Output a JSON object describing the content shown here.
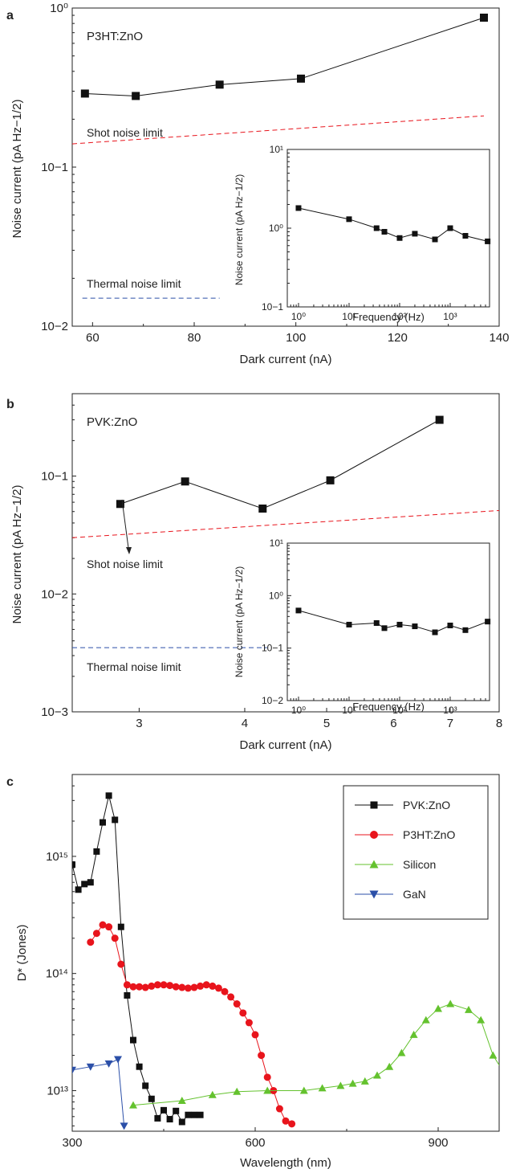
{
  "panels": [
    {
      "label": "a",
      "annotations": [
        "P3HT:ZnO",
        "Shot noise limit",
        "Thermal noise limit"
      ]
    },
    {
      "label": "b",
      "annotations": [
        "PVK:ZnO",
        "Shot noise limit",
        "Thermal noise limit"
      ]
    },
    {
      "label": "c",
      "annotations": []
    }
  ],
  "colors": {
    "black_series": "#111111",
    "red_series": "#e8141c",
    "green_series": "#64c22e",
    "blue_series": "#2b4fa8",
    "shot_noise_line": "#e8141c",
    "thermal_noise_line": "#2b4fa8"
  },
  "chart_data": [
    {
      "type": "line",
      "panel": "a",
      "xlabel": "Dark current (nA)",
      "ylabel": "Noise current (pA Hz−1/2)",
      "xscale": "linear",
      "yscale": "log",
      "xlim": [
        56,
        140
      ],
      "ylim": [
        0.01,
        1
      ],
      "xticks": [
        "60",
        "80",
        "100",
        "120",
        "140"
      ],
      "yticks": [
        "10−2",
        "10−1",
        "10⁰"
      ],
      "series": [
        {
          "x": [
            58.5,
            68.5,
            85,
            101,
            137
          ],
          "y": [
            0.29,
            0.28,
            0.33,
            0.36,
            0.87
          ]
        },
        {
          "x": [
            56,
            137
          ],
          "y": [
            0.14,
            0.21
          ]
        },
        {
          "x": [
            58,
            85
          ],
          "y": [
            0.015,
            0.015
          ]
        }
      ]
    },
    {
      "type": "line",
      "panel": "a-inset",
      "xlabel": "Frequency (Hz)",
      "ylabel": "Noise current (pA Hz−1/2)",
      "xscale": "log",
      "yscale": "log",
      "xlim": [
        0.6,
        6000
      ],
      "ylim": [
        0.1,
        10
      ],
      "xticks": [
        "10⁰",
        "10¹",
        "10²",
        "10³"
      ],
      "yticks": [
        "10−1",
        "10⁰",
        "10¹"
      ],
      "series": [
        {
          "x": [
            1,
            10,
            35,
            50,
            100,
            200,
            500,
            1000,
            2000,
            5500
          ],
          "y": [
            1.8,
            1.3,
            1.0,
            0.9,
            0.75,
            0.85,
            0.72,
            1.0,
            0.8,
            0.68
          ]
        }
      ]
    },
    {
      "type": "line",
      "panel": "b",
      "xlabel": "Dark current (nA)",
      "ylabel": "Noise current (pA Hz−1/2)",
      "xscale": "log",
      "yscale": "log",
      "xlim": [
        2.5,
        8
      ],
      "ylim": [
        0.001,
        0.5
      ],
      "xticks": [
        "3",
        "4",
        "5",
        "6",
        "7",
        "8"
      ],
      "yticks": [
        "10−3",
        "10−2",
        "10−1"
      ],
      "series": [
        {
          "x": [
            2.85,
            3.4,
            4.2,
            5.05,
            6.8
          ],
          "y": [
            0.058,
            0.09,
            0.053,
            0.092,
            0.3
          ]
        },
        {
          "x": [
            2.5,
            8
          ],
          "y": [
            0.03,
            0.051
          ]
        },
        {
          "x": [
            2.5,
            4.25
          ],
          "y": [
            0.0035,
            0.0035
          ]
        }
      ]
    },
    {
      "type": "line",
      "panel": "b-inset",
      "xlabel": "Frequency (Hz)",
      "ylabel": "Noise current (pA Hz−1/2)",
      "xscale": "log",
      "yscale": "log",
      "xlim": [
        0.6,
        6000
      ],
      "ylim": [
        0.01,
        10
      ],
      "xticks": [
        "10⁰",
        "10¹",
        "10²",
        "10³"
      ],
      "yticks": [
        "10−2",
        "10−1",
        "10⁰",
        "10¹"
      ],
      "series": [
        {
          "x": [
            1,
            10,
            35,
            50,
            100,
            200,
            500,
            1000,
            2000,
            5500
          ],
          "y": [
            0.52,
            0.28,
            0.3,
            0.24,
            0.28,
            0.26,
            0.2,
            0.27,
            0.22,
            0.32
          ]
        }
      ]
    },
    {
      "type": "line",
      "panel": "c",
      "xlabel": "Wavelength (nm)",
      "ylabel": "D* (Jones)",
      "xscale": "linear",
      "yscale": "log",
      "xlim": [
        300,
        1000
      ],
      "ylim": [
        4500000000000.0,
        5000000000000000.0
      ],
      "xticks": [
        "300",
        "600",
        "900"
      ],
      "yticks": [
        "10¹³",
        "10¹⁴",
        "10¹⁵"
      ],
      "legend": "top-right",
      "series": [
        {
          "name": "PVK:ZnO",
          "marker": "square",
          "x": [
            300,
            310,
            320,
            330,
            340,
            350,
            360,
            370,
            380,
            390,
            400,
            410,
            420,
            430,
            440,
            450,
            460,
            470,
            480,
            490,
            500,
            510
          ],
          "y": [
            850000000000000.0,
            520000000000000.0,
            580000000000000.0,
            600000000000000.0,
            1100000000000000.0,
            1950000000000000.0,
            3300000000000000.0,
            2050000000000000.0,
            250000000000000.0,
            65000000000000.0,
            27000000000000.0,
            16000000000000.0,
            11000000000000.0,
            8500000000000.0,
            5800000000000.0,
            6800000000000.0,
            5700000000000.0,
            6700000000000.0,
            5400000000000.0,
            6200000000000.0,
            6200000000000.0,
            6200000000000.0
          ]
        },
        {
          "name": "P3HT:ZnO",
          "marker": "circle",
          "x": [
            330,
            340,
            350,
            360,
            370,
            380,
            390,
            400,
            410,
            420,
            430,
            440,
            450,
            460,
            470,
            480,
            490,
            500,
            510,
            520,
            530,
            540,
            550,
            560,
            570,
            580,
            590,
            600,
            610,
            620,
            630,
            640,
            650,
            660
          ],
          "y": [
            185000000000000.0,
            220000000000000.0,
            260000000000000.0,
            250000000000000.0,
            200000000000000.0,
            120000000000000.0,
            80000000000000.0,
            77000000000000.0,
            77000000000000.0,
            76000000000000.0,
            78000000000000.0,
            80000000000000.0,
            80000000000000.0,
            79000000000000.0,
            77000000000000.0,
            76000000000000.0,
            75000000000000.0,
            76000000000000.0,
            78000000000000.0,
            80000000000000.0,
            78000000000000.0,
            75000000000000.0,
            70000000000000.0,
            63000000000000.0,
            55000000000000.0,
            46000000000000.0,
            38000000000000.0,
            30000000000000.0,
            20000000000000.0,
            13000000000000.0,
            10000000000000.0,
            7000000000000.0,
            5500000000000.0,
            5200000000000.0
          ]
        },
        {
          "name": "Silicon",
          "marker": "triangle-up",
          "x": [
            400,
            480,
            530,
            570,
            620,
            680,
            710,
            740,
            760,
            780,
            800,
            820,
            840,
            860,
            880,
            900,
            920,
            950,
            970,
            990,
            1005
          ],
          "y": [
            7500000000000.0,
            8200000000000.0,
            9200000000000.0,
            9800000000000.0,
            10000000000000.0,
            10000000000000.0,
            10500000000000.0,
            11000000000000.0,
            11500000000000.0,
            12000000000000.0,
            13500000000000.0,
            16000000000000.0,
            21000000000000.0,
            30000000000000.0,
            40000000000000.0,
            50000000000000.0,
            55000000000000.0,
            49000000000000.0,
            40000000000000.0,
            20000000000000.0,
            15000000000000.0
          ]
        },
        {
          "name": "GaN",
          "marker": "triangle-down",
          "x": [
            300,
            330,
            360,
            375,
            385
          ],
          "y": [
            15000000000000.0,
            16000000000000.0,
            17000000000000.0,
            18500000000000.0,
            5000000000000.0
          ]
        }
      ]
    }
  ]
}
